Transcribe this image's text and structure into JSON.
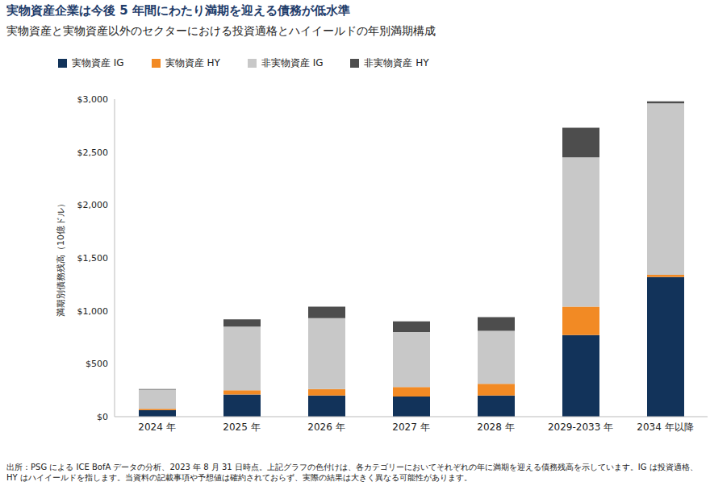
{
  "chart_data": {
    "type": "bar",
    "title": "実物資産企業は今後 5 年間にわたり満期を迎える債務が低水準",
    "subtitle": "実物資産と実物資産以外のセクターにおける投資適格とハイイールドの年別満期構成",
    "y_label": "満期別債務残高（10億ドル）",
    "footnote": "出所：PSG による ICE BofA データの分析、2023 年 8 月 31 日時点。上記グラフの色付けは、各カテゴリーにおいてそれぞれの年に満期を迎える債務残高を示しています。IG は投資適格、HY はハイイールドを指します。当資料の記載事項や予想値は確約されておらず、実際の結果は大きく異なる可能性があります。",
    "stacked": true,
    "categories": [
      "2024 年",
      "2025 年",
      "2026 年",
      "2027 年",
      "2028 年",
      "2029-2033 年",
      "2034 年以降"
    ],
    "series": [
      {
        "name": "実物資産 IG",
        "color": "#12335a",
        "values": [
          60,
          210,
          200,
          190,
          200,
          770,
          1320
        ]
      },
      {
        "name": "実物資産 HY",
        "color": "#f28a24",
        "values": [
          15,
          40,
          60,
          90,
          110,
          270,
          20
        ]
      },
      {
        "name": "非実物資産 IG",
        "color": "#c8c8c8",
        "values": [
          180,
          600,
          670,
          520,
          500,
          1410,
          1620
        ]
      },
      {
        "name": "非実物資産 HY",
        "color": "#4d4d4d",
        "values": [
          5,
          70,
          110,
          100,
          130,
          280,
          20
        ]
      }
    ],
    "ylim": [
      0,
      3000
    ],
    "yticks": [
      {
        "value": 0,
        "label": "$0"
      },
      {
        "value": 500,
        "label": "$500"
      },
      {
        "value": 1000,
        "label": "$1,000"
      },
      {
        "value": 1500,
        "label": "$1,500"
      },
      {
        "value": 2000,
        "label": "$2,000"
      },
      {
        "value": 2500,
        "label": "$2,500"
      },
      {
        "value": 3000,
        "label": "$3,000"
      }
    ]
  }
}
